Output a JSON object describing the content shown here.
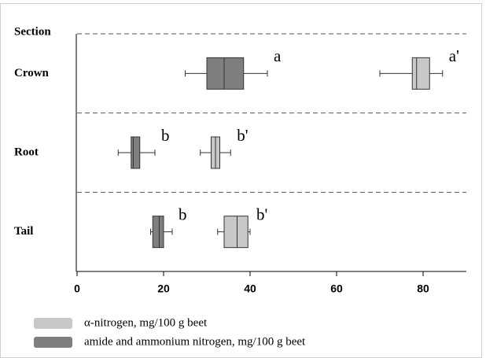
{
  "chart_data": {
    "type": "boxplot",
    "y_label": "Section",
    "categories": [
      "Crown",
      "Root",
      "Tail"
    ],
    "xlim": [
      0,
      90
    ],
    "xticks": [
      0,
      20,
      40,
      60,
      80
    ],
    "series": [
      {
        "name": "α-nitrogen, mg/100 g beet",
        "color": "#c8c8c8",
        "values": [
          {
            "min": 70,
            "q1": 77.5,
            "median": 78.5,
            "q3": 81.5,
            "max": 84.5
          },
          {
            "min": 28.5,
            "q1": 31,
            "median": 32,
            "q3": 33,
            "max": 35.5
          },
          {
            "min": 32.5,
            "q1": 34,
            "median": 37,
            "q3": 39.5,
            "max": 40
          }
        ],
        "labels": [
          "a'",
          "b'",
          "b'"
        ]
      },
      {
        "name": "amide and ammonium nitrogen, mg/100 g beet",
        "color": "#7f7f7f",
        "values": [
          {
            "min": 25,
            "q1": 30,
            "median": 34,
            "q3": 38.5,
            "max": 44
          },
          {
            "min": 9.5,
            "q1": 12.5,
            "median": 13,
            "q3": 14.5,
            "max": 18
          },
          {
            "min": 17,
            "q1": 17.5,
            "median": 19,
            "q3": 20,
            "max": 22
          }
        ],
        "labels": [
          "a",
          "b",
          "b"
        ]
      }
    ]
  }
}
